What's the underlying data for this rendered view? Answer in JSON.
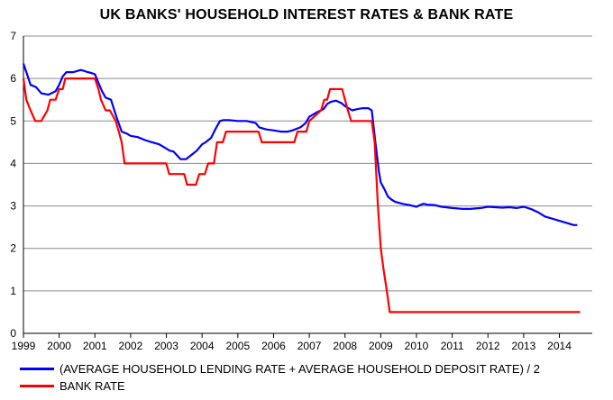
{
  "chart_data": {
    "type": "line",
    "title": "UK BANKS' HOUSEHOLD INTEREST RATES & BANK RATE",
    "xlabel": "",
    "ylabel": "",
    "xlim": [
      1999,
      2014.92
    ],
    "ylim": [
      0,
      7
    ],
    "xticks": [
      "1999",
      "2000",
      "2001",
      "2002",
      "2003",
      "2004",
      "2005",
      "2006",
      "2007",
      "2008",
      "2009",
      "2010",
      "2011",
      "2012",
      "2013",
      "2014"
    ],
    "yticks": [
      "0",
      "1",
      "2",
      "3",
      "4",
      "5",
      "6",
      "7"
    ],
    "grid": "horizontal",
    "legend_position": "bottom",
    "series": [
      {
        "name": "(AVERAGE HOUSEHOLD LENDING RATE + AVERAGE HOUSEHOLD DEPOSIT RATE) / 2",
        "color": "#0000ff",
        "x": [
          1999.0,
          1999.1,
          1999.2,
          1999.35,
          1999.5,
          1999.7,
          1999.9,
          2000.0,
          2000.1,
          2000.2,
          2000.4,
          2000.6,
          2000.7,
          2000.8,
          2000.9,
          2001.0,
          2001.1,
          2001.2,
          2001.3,
          2001.45,
          2001.6,
          2001.75,
          2001.9,
          2002.0,
          2002.2,
          2002.4,
          2002.6,
          2002.8,
          2003.0,
          2003.1,
          2003.2,
          2003.4,
          2003.55,
          2003.7,
          2003.85,
          2004.0,
          2004.1,
          2004.25,
          2004.4,
          2004.5,
          2004.6,
          2004.75,
          2005.0,
          2005.25,
          2005.5,
          2005.6,
          2005.8,
          2006.0,
          2006.2,
          2006.4,
          2006.5,
          2006.6,
          2006.75,
          2006.9,
          2007.0,
          2007.2,
          2007.4,
          2007.5,
          2007.6,
          2007.75,
          2007.9,
          2008.0,
          2008.1,
          2008.2,
          2008.35,
          2008.5,
          2008.65,
          2008.75,
          2008.85,
          2008.95,
          2009.0,
          2009.1,
          2009.2,
          2009.3,
          2009.4,
          2009.6,
          2009.8,
          2010.0,
          2010.1,
          2010.2,
          2010.3,
          2010.5,
          2010.7,
          2011.0,
          2011.3,
          2011.5,
          2011.8,
          2012.0,
          2012.2,
          2012.4,
          2012.6,
          2012.8,
          2013.0,
          2013.2,
          2013.4,
          2013.6,
          2013.8,
          2014.0,
          2014.2,
          2014.4,
          2014.5
        ],
        "values": [
          6.35,
          6.1,
          5.85,
          5.8,
          5.65,
          5.62,
          5.7,
          5.85,
          6.05,
          6.15,
          6.15,
          6.2,
          6.18,
          6.15,
          6.13,
          6.1,
          5.9,
          5.7,
          5.55,
          5.5,
          5.1,
          4.75,
          4.7,
          4.65,
          4.62,
          4.55,
          4.5,
          4.45,
          4.35,
          4.3,
          4.28,
          4.1,
          4.1,
          4.2,
          4.3,
          4.45,
          4.5,
          4.6,
          4.85,
          5.0,
          5.02,
          5.02,
          5.0,
          5.0,
          4.95,
          4.85,
          4.8,
          4.78,
          4.75,
          4.75,
          4.77,
          4.8,
          4.85,
          4.95,
          5.1,
          5.2,
          5.28,
          5.4,
          5.45,
          5.48,
          5.42,
          5.35,
          5.3,
          5.25,
          5.28,
          5.3,
          5.3,
          5.25,
          4.5,
          3.8,
          3.55,
          3.4,
          3.22,
          3.15,
          3.1,
          3.05,
          3.02,
          2.98,
          3.02,
          3.05,
          3.03,
          3.02,
          2.98,
          2.95,
          2.93,
          2.93,
          2.95,
          2.98,
          2.97,
          2.96,
          2.97,
          2.95,
          2.98,
          2.93,
          2.85,
          2.75,
          2.7,
          2.65,
          2.6,
          2.55,
          2.55
        ]
      },
      {
        "name": "BANK RATE",
        "color": "#ff0000",
        "x": [
          1999.0,
          1999.08,
          1999.2,
          1999.33,
          1999.5,
          1999.67,
          1999.75,
          1999.9,
          2000.0,
          2000.1,
          2000.17,
          2000.3,
          2000.5,
          2000.75,
          2000.92,
          2001.0,
          2001.1,
          2001.17,
          2001.3,
          2001.42,
          2001.58,
          2001.67,
          2001.75,
          2001.83,
          2001.92,
          2002.0,
          2002.5,
          2003.0,
          2003.08,
          2003.5,
          2003.58,
          2003.83,
          2003.92,
          2004.08,
          2004.17,
          2004.33,
          2004.42,
          2004.58,
          2004.67,
          2005.58,
          2005.67,
          2006.58,
          2006.67,
          2006.92,
          2007.0,
          2007.33,
          2007.42,
          2007.5,
          2007.58,
          2007.92,
          2008.0,
          2008.08,
          2008.17,
          2008.75,
          2008.83,
          2008.92,
          2009.0,
          2009.08,
          2009.17,
          2009.25,
          2014.58
        ],
        "values": [
          6.0,
          5.5,
          5.25,
          5.0,
          5.0,
          5.25,
          5.5,
          5.5,
          5.75,
          5.75,
          6.0,
          6.0,
          6.0,
          6.0,
          6.0,
          6.0,
          5.75,
          5.5,
          5.25,
          5.25,
          5.0,
          4.75,
          4.5,
          4.0,
          4.0,
          4.0,
          4.0,
          4.0,
          3.75,
          3.75,
          3.5,
          3.5,
          3.75,
          3.75,
          4.0,
          4.0,
          4.5,
          4.5,
          4.75,
          4.75,
          4.5,
          4.5,
          4.75,
          4.75,
          5.0,
          5.25,
          5.5,
          5.5,
          5.75,
          5.75,
          5.5,
          5.25,
          5.0,
          5.0,
          4.5,
          3.0,
          2.0,
          1.5,
          1.0,
          0.5,
          0.5
        ]
      }
    ]
  }
}
